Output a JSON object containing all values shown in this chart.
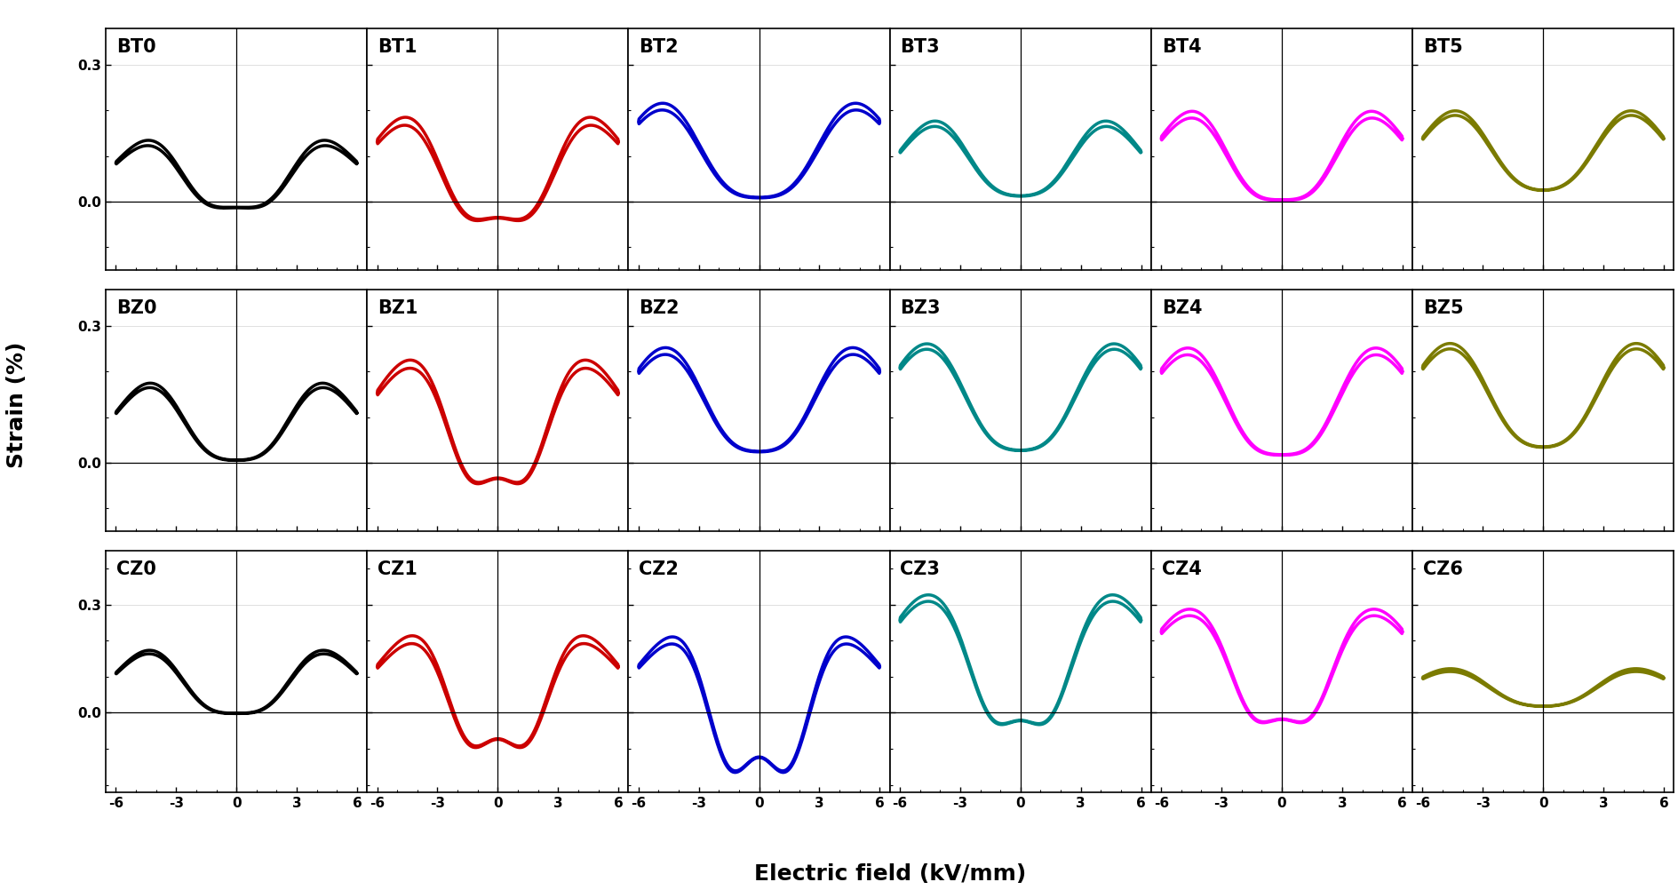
{
  "colors": {
    "col0": "#000000",
    "col1": "#cc0000",
    "col2": "#0000cc",
    "col3": "#008888",
    "col4": "#ff00ff",
    "col5": "#7b7b00"
  },
  "labels": [
    [
      "BT0",
      "BT1",
      "BT2",
      "BT3",
      "BT4",
      "BT5"
    ],
    [
      "BZ0",
      "BZ1",
      "BZ2",
      "BZ3",
      "BZ4",
      "BZ5"
    ],
    [
      "CZ0",
      "CZ1",
      "CZ2",
      "CZ3",
      "CZ4",
      "CZ6"
    ]
  ],
  "ylabel": "Strain (%)",
  "xlabel": "Electric field (kV/mm)",
  "linewidth": 2.5,
  "label_fontsize": 15,
  "tick_fontsize": 11,
  "axis_label_fontsize": 18
}
